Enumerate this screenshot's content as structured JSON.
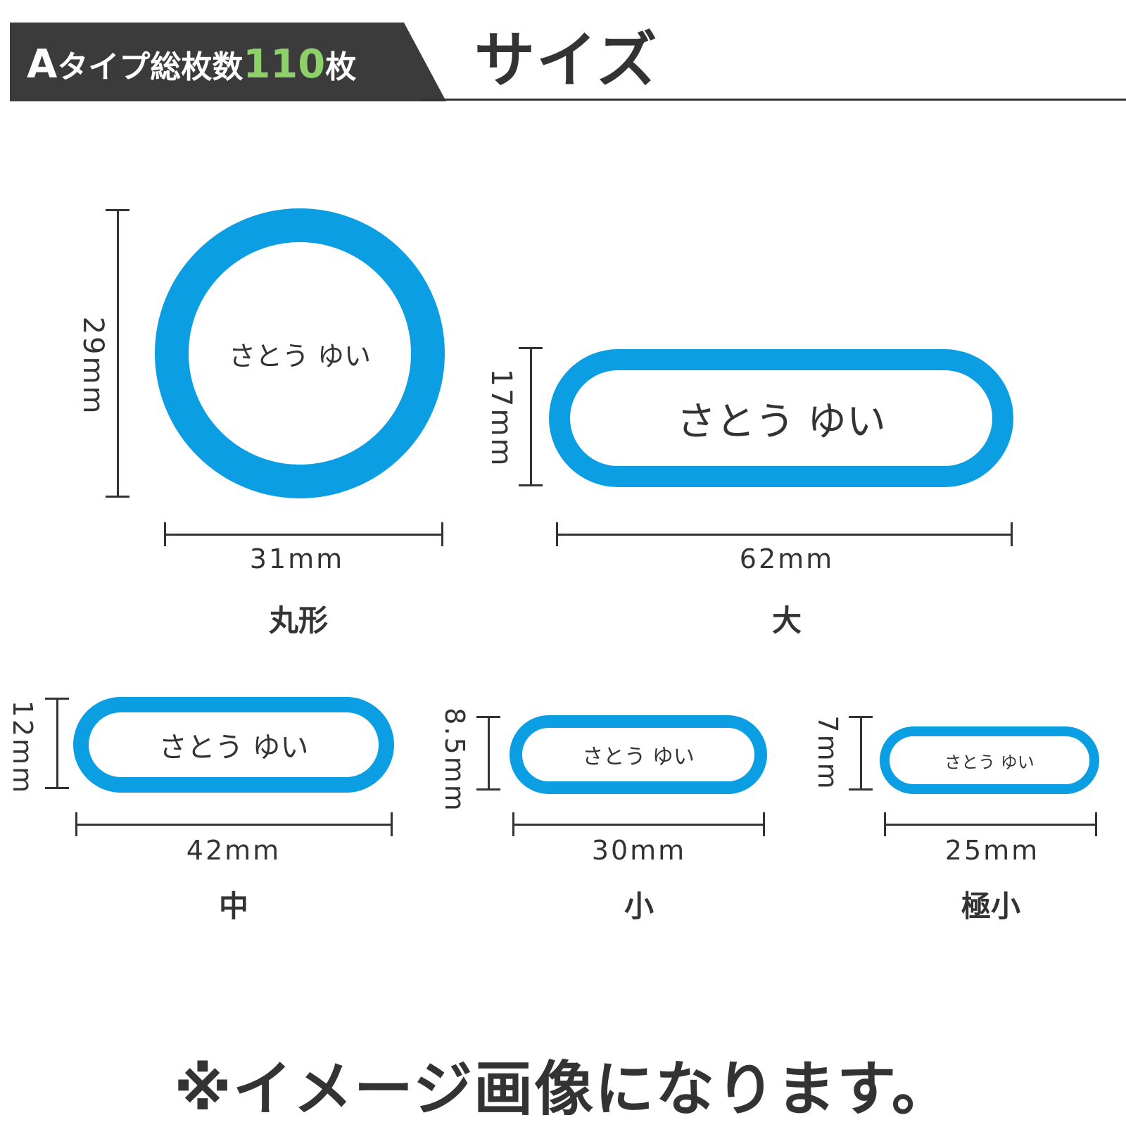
{
  "header": {
    "type_prefix": "A",
    "type_text": "タイプ総枚数",
    "count": "110",
    "count_suffix": "枚",
    "title": "サイズ"
  },
  "sample_name": "さとう ゆい",
  "sizes": [
    {
      "name": "丸形",
      "width": "31mm",
      "height": "29mm"
    },
    {
      "name": "大",
      "width": "62mm",
      "height": "17mm"
    },
    {
      "name": "中",
      "width": "42mm",
      "height": "12mm"
    },
    {
      "name": "小",
      "width": "30mm",
      "height": "8.5mm"
    },
    {
      "name": "極小",
      "width": "25mm",
      "height": "7mm"
    }
  ],
  "note": "※イメージ画像になります。",
  "colors": {
    "label_border": "#0b9ee2",
    "header_bg": "#3b3b3b",
    "count_green": "#8ed16a",
    "text": "#333333"
  }
}
